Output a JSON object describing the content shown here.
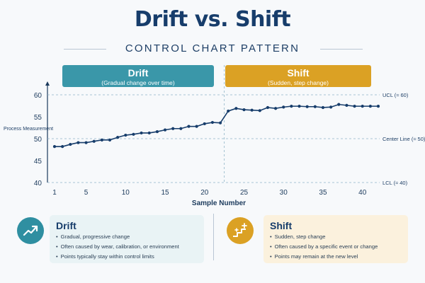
{
  "title": "Drift vs. Shift",
  "subtitle": "CONTROL CHART PATTERN",
  "banners": {
    "drift": {
      "title": "Drift",
      "subtitle": "(Gradual change over time)"
    },
    "shift": {
      "title": "Shift",
      "subtitle": "(Sudden, step change)"
    }
  },
  "cards": {
    "drift": {
      "title": "Drift",
      "icon": "trend-up-icon",
      "bullets": [
        "Gradual, progressive change",
        "Often caused by wear, calibration, or environment",
        "Points typically stay within control limits"
      ]
    },
    "shift": {
      "title": "Shift",
      "icon": "step-up-icon",
      "bullets": [
        "Sudden, step change",
        "Often caused by a specific event or change",
        "Points may remain at the new level"
      ]
    }
  },
  "colors": {
    "line": "#173d6b",
    "drift": "#3a97a9",
    "shift": "#dba124",
    "limit": "#8fb4c8"
  },
  "chart_data": {
    "type": "line",
    "xlabel": "Sample Number",
    "ylabel": "Process Measurement",
    "xlim": [
      1,
      42
    ],
    "ylim": [
      40,
      60
    ],
    "x_ticks": [
      1,
      5,
      10,
      15,
      20,
      25,
      30,
      35,
      40
    ],
    "y_ticks": [
      40,
      45,
      50,
      55,
      60
    ],
    "control_limits": [
      {
        "label": "UCL (≈ 60)",
        "value": 60
      },
      {
        "label": "Center Line (≈ 50)",
        "value": 50
      },
      {
        "label": "LCL (≈ 40)",
        "value": 40
      }
    ],
    "shift_at": 22.5,
    "series": [
      {
        "x": [
          1,
          2,
          3,
          4,
          5,
          6,
          7,
          8,
          9,
          10,
          11,
          12,
          13,
          14,
          15,
          16,
          17,
          18,
          19,
          20,
          21,
          22,
          23,
          24,
          25,
          26,
          27,
          28,
          29,
          30,
          31,
          32,
          33,
          34,
          35,
          36,
          37,
          38,
          39,
          40,
          41,
          42
        ],
        "values": [
          48.2,
          48.2,
          48.7,
          49.1,
          49.1,
          49.4,
          49.7,
          49.7,
          50.3,
          50.8,
          51.0,
          51.3,
          51.3,
          51.6,
          52.0,
          52.3,
          52.3,
          52.8,
          52.8,
          53.4,
          53.7,
          53.6,
          56.3,
          56.9,
          56.6,
          56.5,
          56.4,
          57.1,
          56.9,
          57.2,
          57.4,
          57.4,
          57.3,
          57.3,
          57.1,
          57.2,
          57.8,
          57.6,
          57.4,
          57.4,
          57.4,
          57.4
        ]
      }
    ]
  }
}
